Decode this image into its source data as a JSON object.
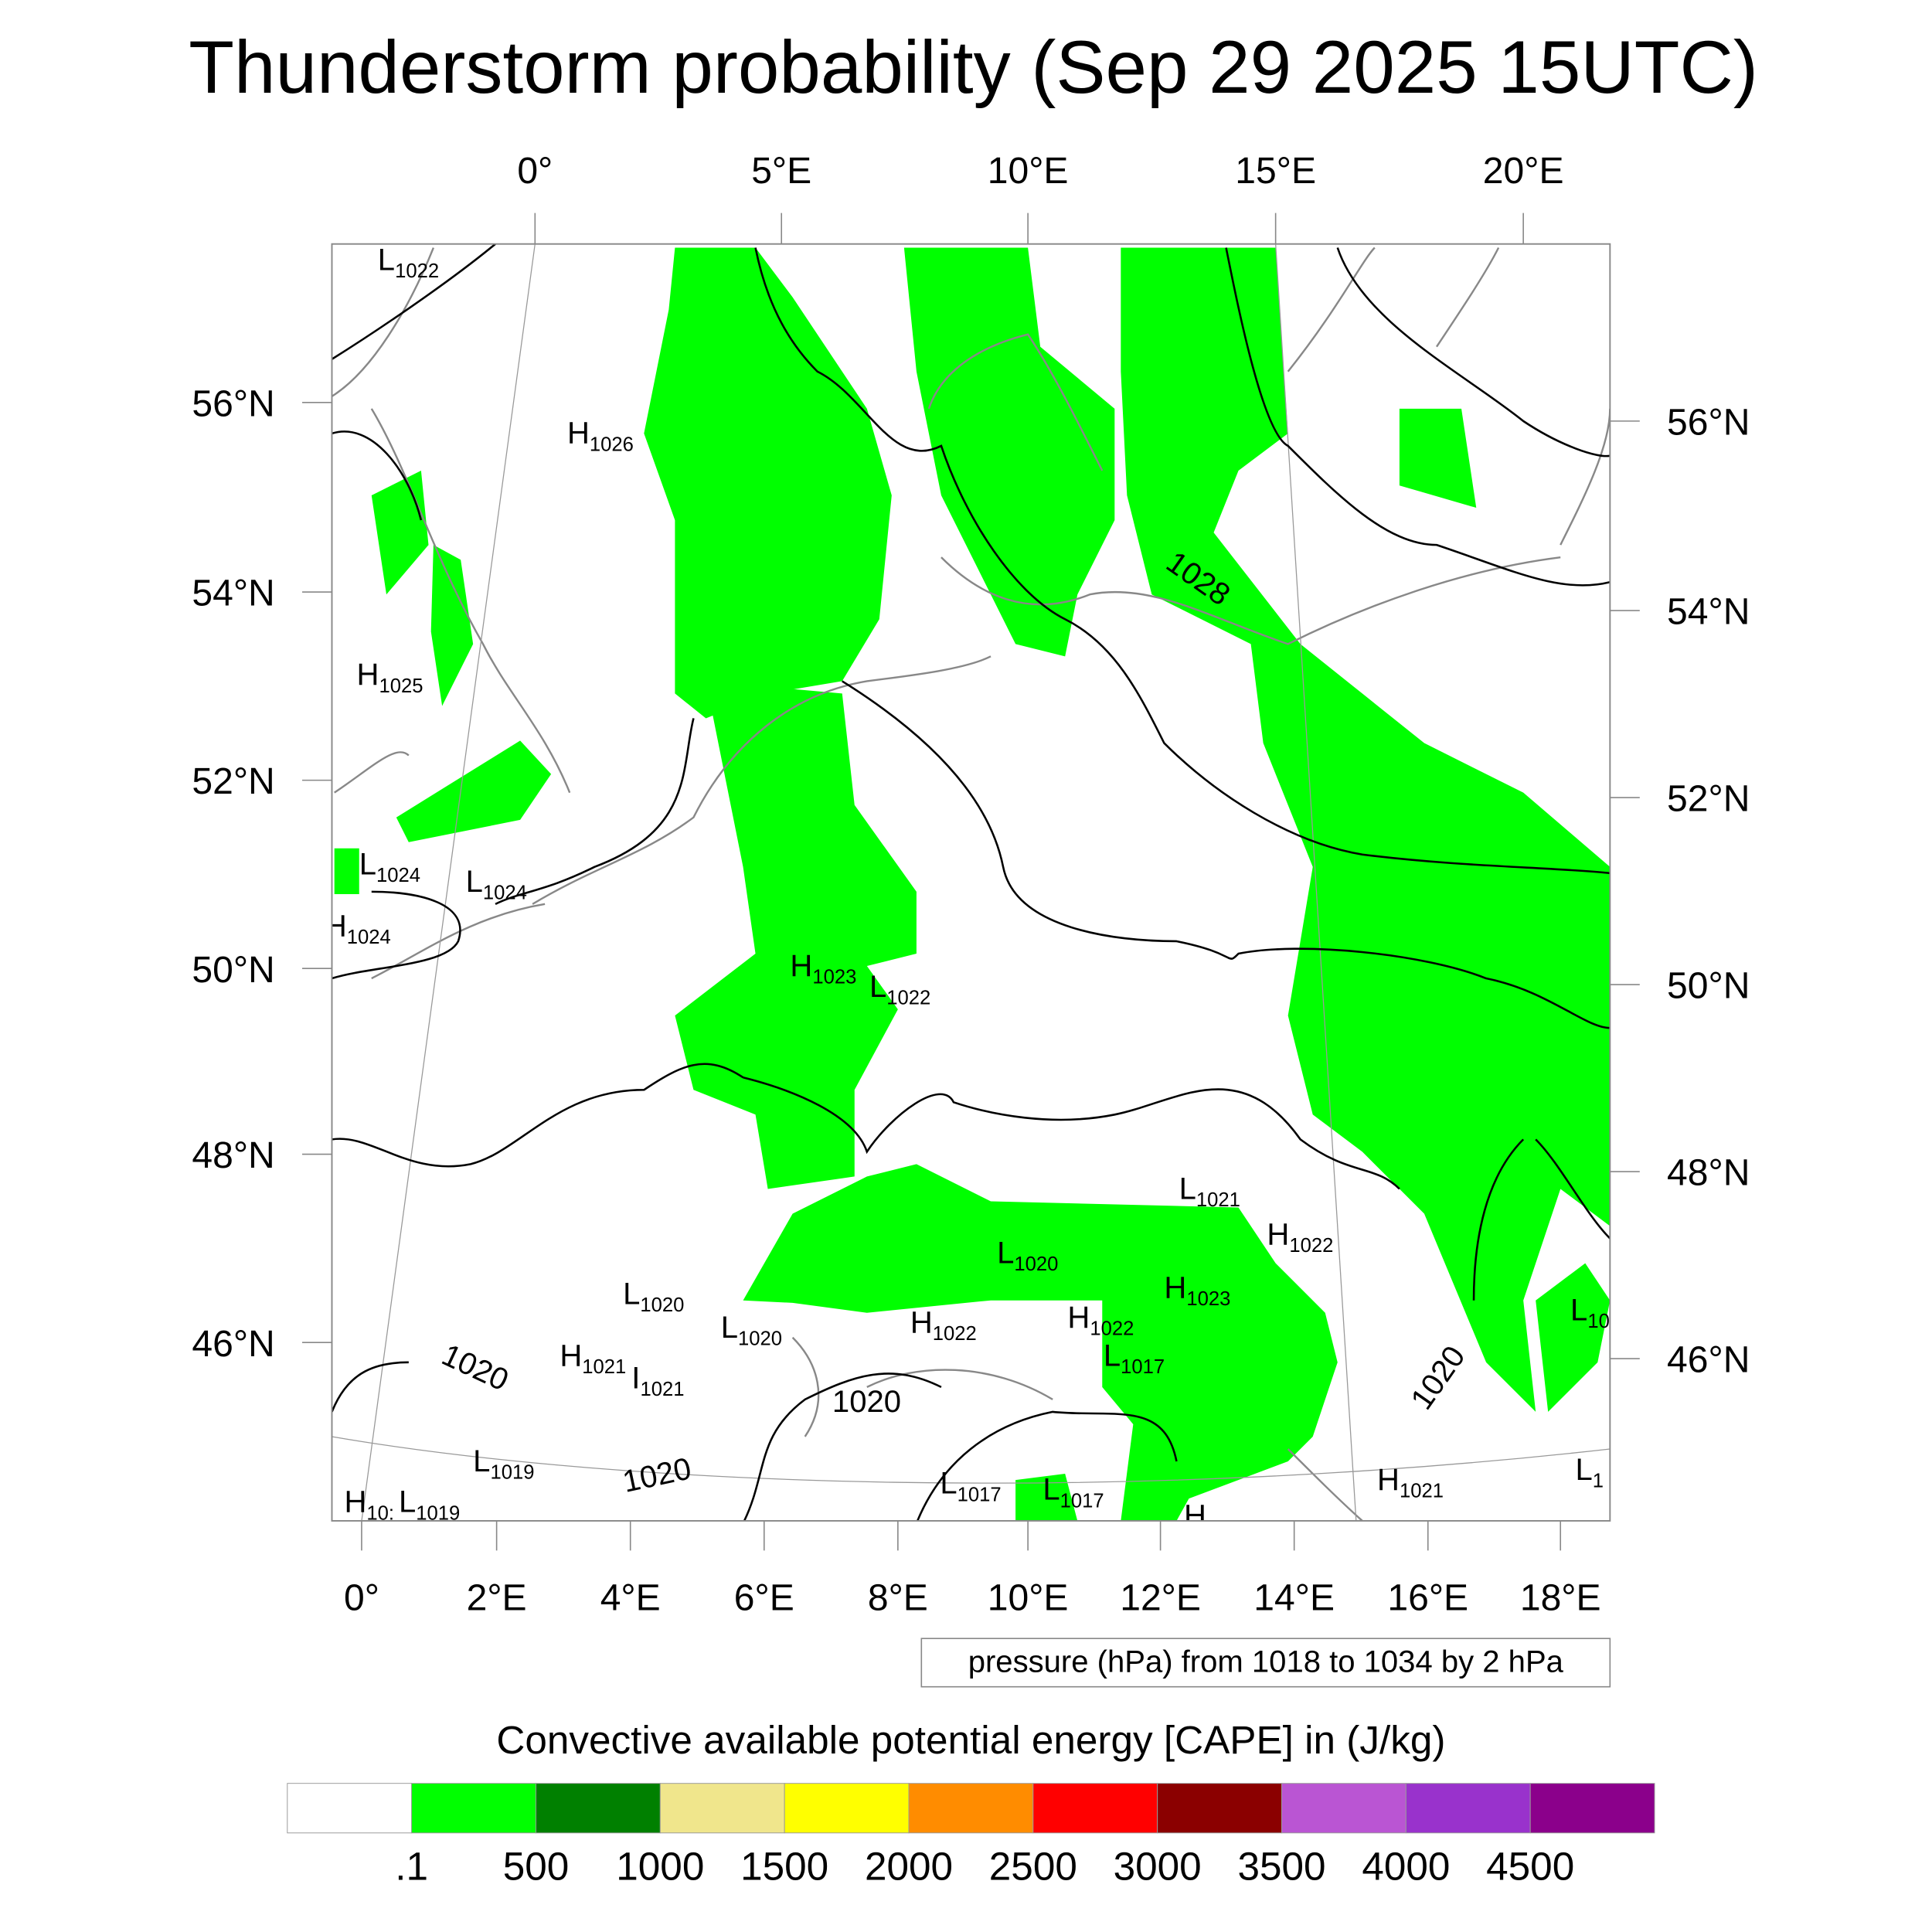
{
  "title": "Thunderstorm probability (Sep 29 2025 15UTC)",
  "axes": {
    "top_lon": [
      "0°",
      "5°E",
      "10°E",
      "15°E",
      "20°E"
    ],
    "bottom_lon": [
      "0°",
      "2°E",
      "4°E",
      "6°E",
      "8°E",
      "10°E",
      "12°E",
      "14°E",
      "16°E",
      "18°E"
    ],
    "left_lat": [
      "56°N",
      "54°N",
      "52°N",
      "50°N",
      "48°N",
      "46°N"
    ],
    "right_lat": [
      "56°N",
      "54°N",
      "52°N",
      "50°N",
      "48°N",
      "46°N"
    ]
  },
  "pressure_labels": [
    {
      "t": "L",
      "v": "1022"
    },
    {
      "t": "H",
      "v": "1026"
    },
    {
      "t": "H",
      "v": "1025"
    },
    {
      "t": "L",
      "v": "1024"
    },
    {
      "t": "L",
      "v": "1024"
    },
    {
      "t": "H",
      "v": "1024"
    },
    {
      "t": "H",
      "v": "1023"
    },
    {
      "t": "L",
      "v": "1022"
    },
    {
      "t": "L",
      "v": "1021"
    },
    {
      "t": "H",
      "v": "1022"
    },
    {
      "t": "L",
      "v": "1020"
    },
    {
      "t": "H",
      "v": "1023"
    },
    {
      "t": "L",
      "v": "1020"
    },
    {
      "t": "L",
      "v": "1020"
    },
    {
      "t": "H",
      "v": "1022"
    },
    {
      "t": "H",
      "v": "1022"
    },
    {
      "t": "L",
      "v": "1017"
    },
    {
      "t": "H",
      "v": "1021"
    },
    {
      "t": "I",
      "v": "1021"
    },
    {
      "t": "L",
      "v": "1019"
    },
    {
      "t": "H",
      "v": "10:"
    },
    {
      "t": "L",
      "v": "1019"
    },
    {
      "t": "L",
      "v": "1017"
    },
    {
      "t": "L",
      "v": "1017"
    },
    {
      "t": "H",
      "v": "1021"
    },
    {
      "t": "L",
      "v": "10"
    },
    {
      "t": "L",
      "v": "1"
    },
    {
      "t": "H",
      "v": ""
    }
  ],
  "contour_labels": [
    "1028",
    "1020",
    "1020",
    "1020",
    "1020"
  ],
  "legend_note": "pressure (hPa) from 1018 to 1034 by 2 hPa",
  "colorbar": {
    "title": "Convective available potential energy [CAPE] in (J/kg)",
    "colors": [
      "#ffffff",
      "#00ff00",
      "#008000",
      "#f0e68c",
      "#ffff00",
      "#ff8c00",
      "#ff0000",
      "#8b0000",
      "#ba55d3",
      "#9932cc",
      "#8b008b"
    ],
    "labels": [
      ".1",
      "500",
      "1000",
      "1500",
      "2000",
      "2500",
      "3000",
      "3500",
      "4000",
      "4500"
    ]
  },
  "cape_fill_color": "#00ff00"
}
